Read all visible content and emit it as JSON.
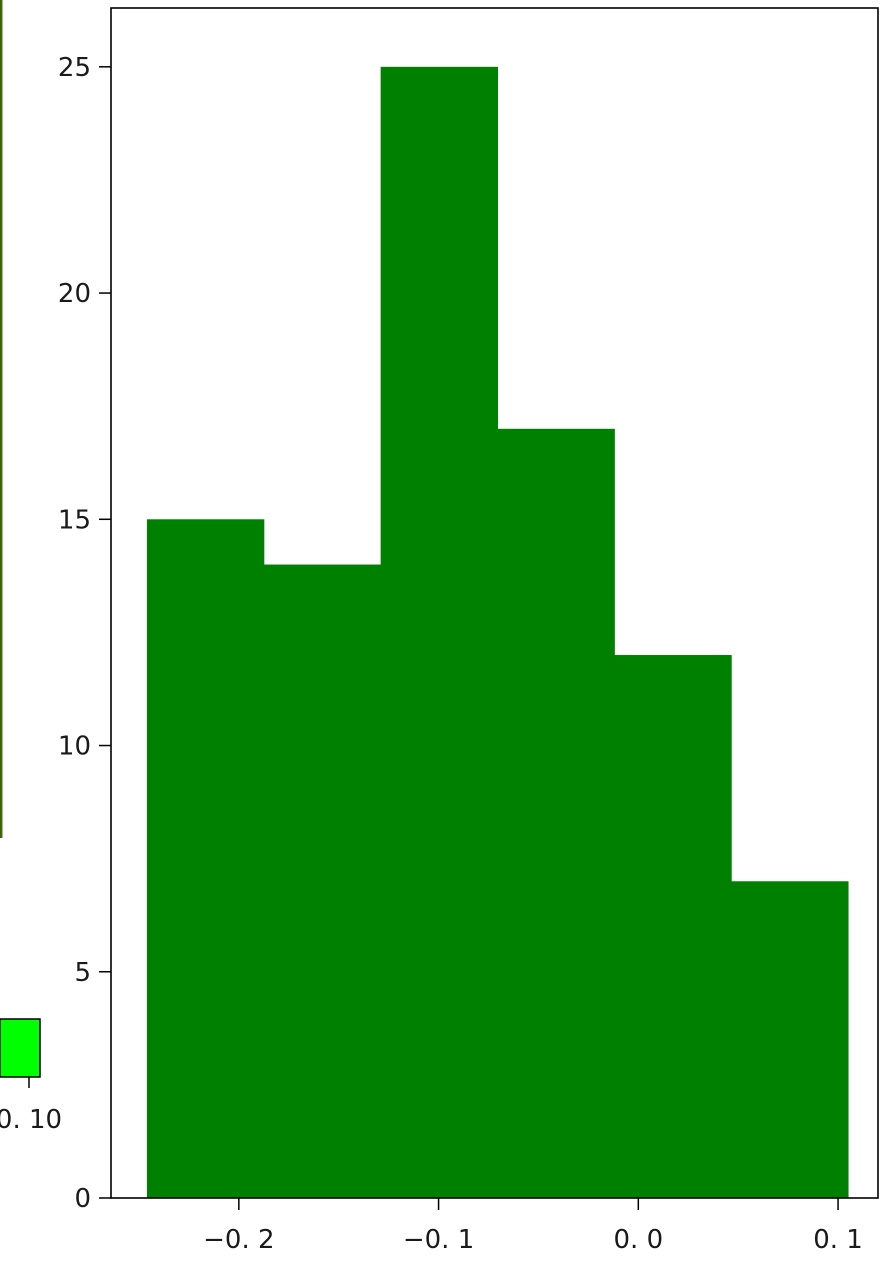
{
  "chart_data": {
    "type": "bar",
    "bin_edges": [
      -0.246,
      -0.1875,
      -0.129,
      -0.0705,
      -0.012,
      0.0465,
      0.105
    ],
    "values": [
      15,
      14,
      25,
      17,
      12,
      7
    ],
    "color": "#008000",
    "xlim": [
      -0.264,
      0.12
    ],
    "ylim": [
      0,
      26.3
    ],
    "x_ticks": [
      {
        "value": -0.2,
        "label": "−0. 2"
      },
      {
        "value": -0.1,
        "label": "−0. 1"
      },
      {
        "value": 0.0,
        "label": "0. 0"
      },
      {
        "value": 0.1,
        "label": "0. 1"
      }
    ],
    "y_ticks": [
      {
        "value": 0,
        "label": "0"
      },
      {
        "value": 5,
        "label": "5"
      },
      {
        "value": 10,
        "label": "10"
      },
      {
        "value": 15,
        "label": "15"
      },
      {
        "value": 20,
        "label": "20"
      },
      {
        "value": 25,
        "label": "25"
      }
    ],
    "grid": false
  },
  "neighbor_fragment": {
    "tick_label": "0. 10",
    "swatch_color": "#00ff00",
    "bar_color": "#008000",
    "line_color": "#d62728"
  }
}
